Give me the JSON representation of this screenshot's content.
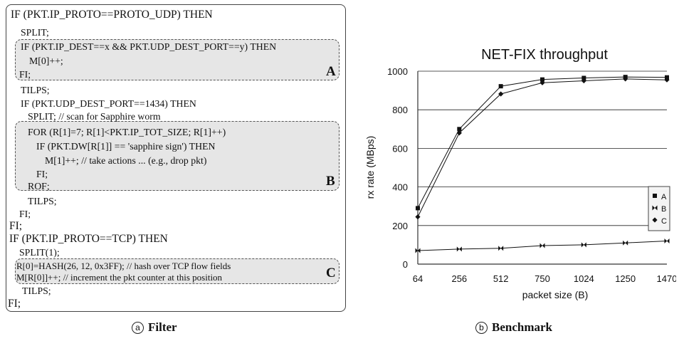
{
  "filter": {
    "lines": [
      "IF (PKT.IP_PROTO==PROTO_UDP) THEN",
      "SPLIT;",
      "IF (PKT.IP_DEST==x && PKT.UDP_DEST_PORT==y) THEN",
      "M[0]++;",
      "FI;",
      "TILPS;",
      "IF (PKT.UDP_DEST_PORT==1434) THEN",
      "SPLIT; // scan for Sapphire worm",
      "FOR (R[1]=7; R[1]<PKT.IP_TOT_SIZE; R[1]++)",
      "IF (PKT.DW[R[1]] == 'sapphire sign') THEN",
      "M[1]++; // take actions ... (e.g., drop pkt)",
      "FI;",
      "ROF;",
      "TILPS;",
      "FI;",
      "FI;",
      "IF (PKT.IP_PROTO==TCP) THEN",
      "SPLIT(1);",
      "R[0]=HASH(26, 12, 0x3FF); // hash over TCP flow fields",
      "M[R[0]]++; // increment the pkt counter at this position",
      "TILPS;",
      "FI;"
    ],
    "block_labels": [
      "A",
      "B",
      "C"
    ]
  },
  "captions": {
    "a": {
      "mark": "a",
      "text": "Filter"
    },
    "b": {
      "mark": "b",
      "text": "Benchmark"
    }
  },
  "chart_data": {
    "type": "line",
    "title": "NET-FIX throughput",
    "xlabel": "packet size (B)",
    "ylabel": "rx rate (MBps)",
    "categories": [
      "64",
      "256",
      "512",
      "750",
      "1024",
      "1250",
      "1470"
    ],
    "ylim": [
      0,
      1000
    ],
    "yticks": [
      "0",
      "200",
      "400",
      "600",
      "800",
      "1000"
    ],
    "grid": "horizontal",
    "legend_position": "right",
    "series": [
      {
        "name": "A",
        "values": [
          290,
          700,
          922,
          957,
          965,
          970,
          968
        ],
        "marker": "square"
      },
      {
        "name": "B",
        "values": [
          70,
          78,
          82,
          96,
          100,
          110,
          120
        ],
        "marker": "bowtie"
      },
      {
        "name": "C",
        "values": [
          245,
          680,
          882,
          940,
          950,
          960,
          955
        ],
        "marker": "diamond"
      }
    ]
  }
}
